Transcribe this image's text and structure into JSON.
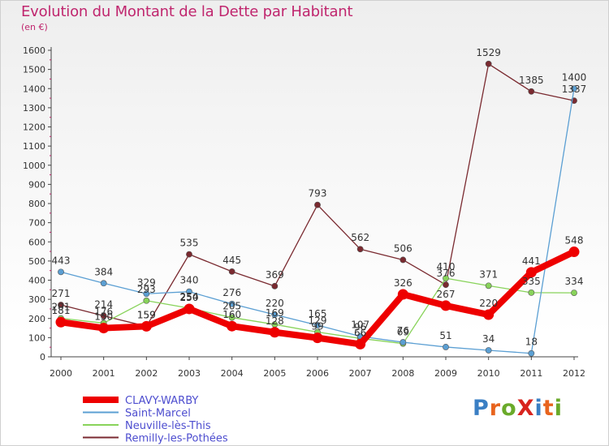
{
  "title": "Evolution du Montant de la Dette par Habitant",
  "subtitle": "(en €)",
  "brand": {
    "text": "ProXiti",
    "letter_colors": [
      "#3a7fc4",
      "#e8641e",
      "#6aaa2a",
      "#d8241e",
      "#3a7fc4",
      "#e8641e",
      "#6aaa2a"
    ]
  },
  "chart_data": {
    "type": "line",
    "x": [
      "2000",
      "2001",
      "2002",
      "2003",
      "2004",
      "2005",
      "2006",
      "2007",
      "2008",
      "2009",
      "2010",
      "2011",
      "2012"
    ],
    "ylim": [
      0,
      1600
    ],
    "yticks": [
      "0",
      "100",
      "200",
      "300",
      "400",
      "500",
      "600",
      "700",
      "800",
      "900",
      "1000",
      "1100",
      "1200",
      "1300",
      "1400",
      "1500",
      "1600"
    ],
    "grid": false,
    "legend_position": "bottom-left",
    "series": [
      {
        "name": "CLAVY-WARBY",
        "color": "#ee0000",
        "values": [
          181,
          150,
          159,
          250,
          160,
          128,
          99,
          66,
          326,
          267,
          220,
          441,
          548
        ],
        "labels": [
          "181",
          "150",
          "159",
          "250",
          "160",
          "128",
          "99",
          "66",
          "326",
          "267",
          "220",
          "441",
          "548"
        ]
      },
      {
        "name": "Saint-Marcel",
        "color": "#5b9fd3",
        "values": [
          443,
          384,
          329,
          340,
          276,
          220,
          165,
          107,
          76,
          51,
          34,
          18,
          1400
        ],
        "labels": [
          "443",
          "384",
          "329",
          "340",
          "276",
          "220",
          "165",
          "107",
          "76",
          "51",
          "34",
          "18",
          "1400"
        ]
      },
      {
        "name": "Neuville-lès-This",
        "color": "#88d35a",
        "values": [
          201,
          176,
          293,
          254,
          205,
          169,
          129,
          96,
          69,
          410,
          371,
          335,
          334
        ],
        "labels": [
          "201",
          "176",
          "293",
          "254",
          "205",
          "169",
          "129",
          "96",
          "69",
          "410",
          "371",
          "335",
          "334"
        ]
      },
      {
        "name": "Remilly-les-Pothées",
        "color": "#7a2a30",
        "values": [
          271,
          214,
          159,
          535,
          445,
          369,
          793,
          562,
          506,
          376,
          1529,
          1385,
          1337
        ],
        "labels": [
          "271",
          "214",
          "159",
          "535",
          "445",
          "369",
          "793",
          "562",
          "506",
          "376",
          "1529",
          "1385",
          "1337"
        ]
      }
    ]
  }
}
